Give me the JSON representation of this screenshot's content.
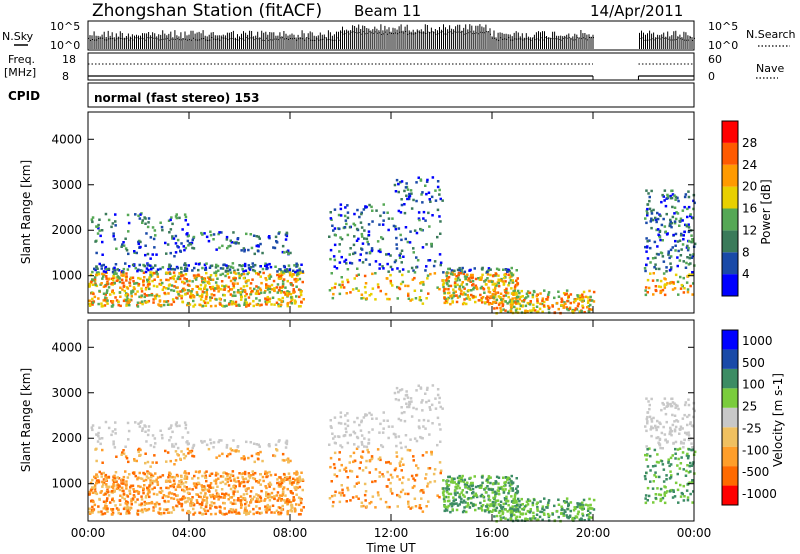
{
  "header": {
    "station": "Zhongshan Station (fitACF)",
    "beam": "Beam 11",
    "date": "14/Apr/2011"
  },
  "noise_panel": {
    "left_label": "N.Sky",
    "right_label": "N.Search",
    "left_ticks": [
      "10^5",
      "10^0"
    ],
    "right_ticks": [
      "10^5",
      "10^0"
    ]
  },
  "freq_panel": {
    "left_label_1": "Freq.",
    "left_label_2": "[MHz]",
    "right_label": "Nave",
    "left_ticks": [
      "18",
      "8"
    ],
    "right_ticks": [
      "60",
      "0"
    ]
  },
  "cpid": {
    "label": "CPID",
    "value": "normal (fast stereo) 153"
  },
  "colors": {
    "power_scale": [
      "#0000ff",
      "#1a4aa8",
      "#3a7a5a",
      "#55a855",
      "#e8d000",
      "#ff9a00",
      "#ff5a00",
      "#ff0000"
    ],
    "velocity_scale": [
      "#ff0000",
      "#ff6a00",
      "#ff9e2a",
      "#f0c060",
      "#c8c8c8",
      "#7acc3c",
      "#3c8c64",
      "#1a4aa8",
      "#0000ff"
    ]
  },
  "chart_data": [
    {
      "type": "heatmap",
      "name": "power",
      "ylabel": "Slant Range [km]",
      "ylim": [
        180,
        4600
      ],
      "yticks": [
        1000,
        2000,
        3000,
        4000
      ],
      "x_range_hours": [
        0,
        24
      ],
      "xticks": [
        "00:00",
        "04:00",
        "08:00",
        "12:00",
        "16:00",
        "20:00",
        "00:00"
      ],
      "data_gap_hours": [
        20,
        21.8
      ],
      "colorbar": {
        "label": "Power [dB]",
        "ticks": [
          4,
          8,
          12,
          16,
          20,
          24,
          28
        ],
        "range": [
          0,
          32
        ]
      }
    },
    {
      "type": "heatmap",
      "name": "velocity",
      "ylabel": "Slant Range [km]",
      "ylim": [
        180,
        4600
      ],
      "yticks": [
        1000,
        2000,
        3000,
        4000
      ],
      "x_range_hours": [
        0,
        24
      ],
      "xticks": [
        "00:00",
        "04:00",
        "08:00",
        "12:00",
        "16:00",
        "20:00",
        "00:00"
      ],
      "xlabel": "Time UT",
      "data_gap_hours": [
        20,
        21.8
      ],
      "colorbar": {
        "label": "Velocity [m s-1]",
        "ticks": [
          "1000",
          "500",
          "100",
          "25",
          "-25",
          "-100",
          "-500",
          "-1000"
        ]
      }
    }
  ]
}
